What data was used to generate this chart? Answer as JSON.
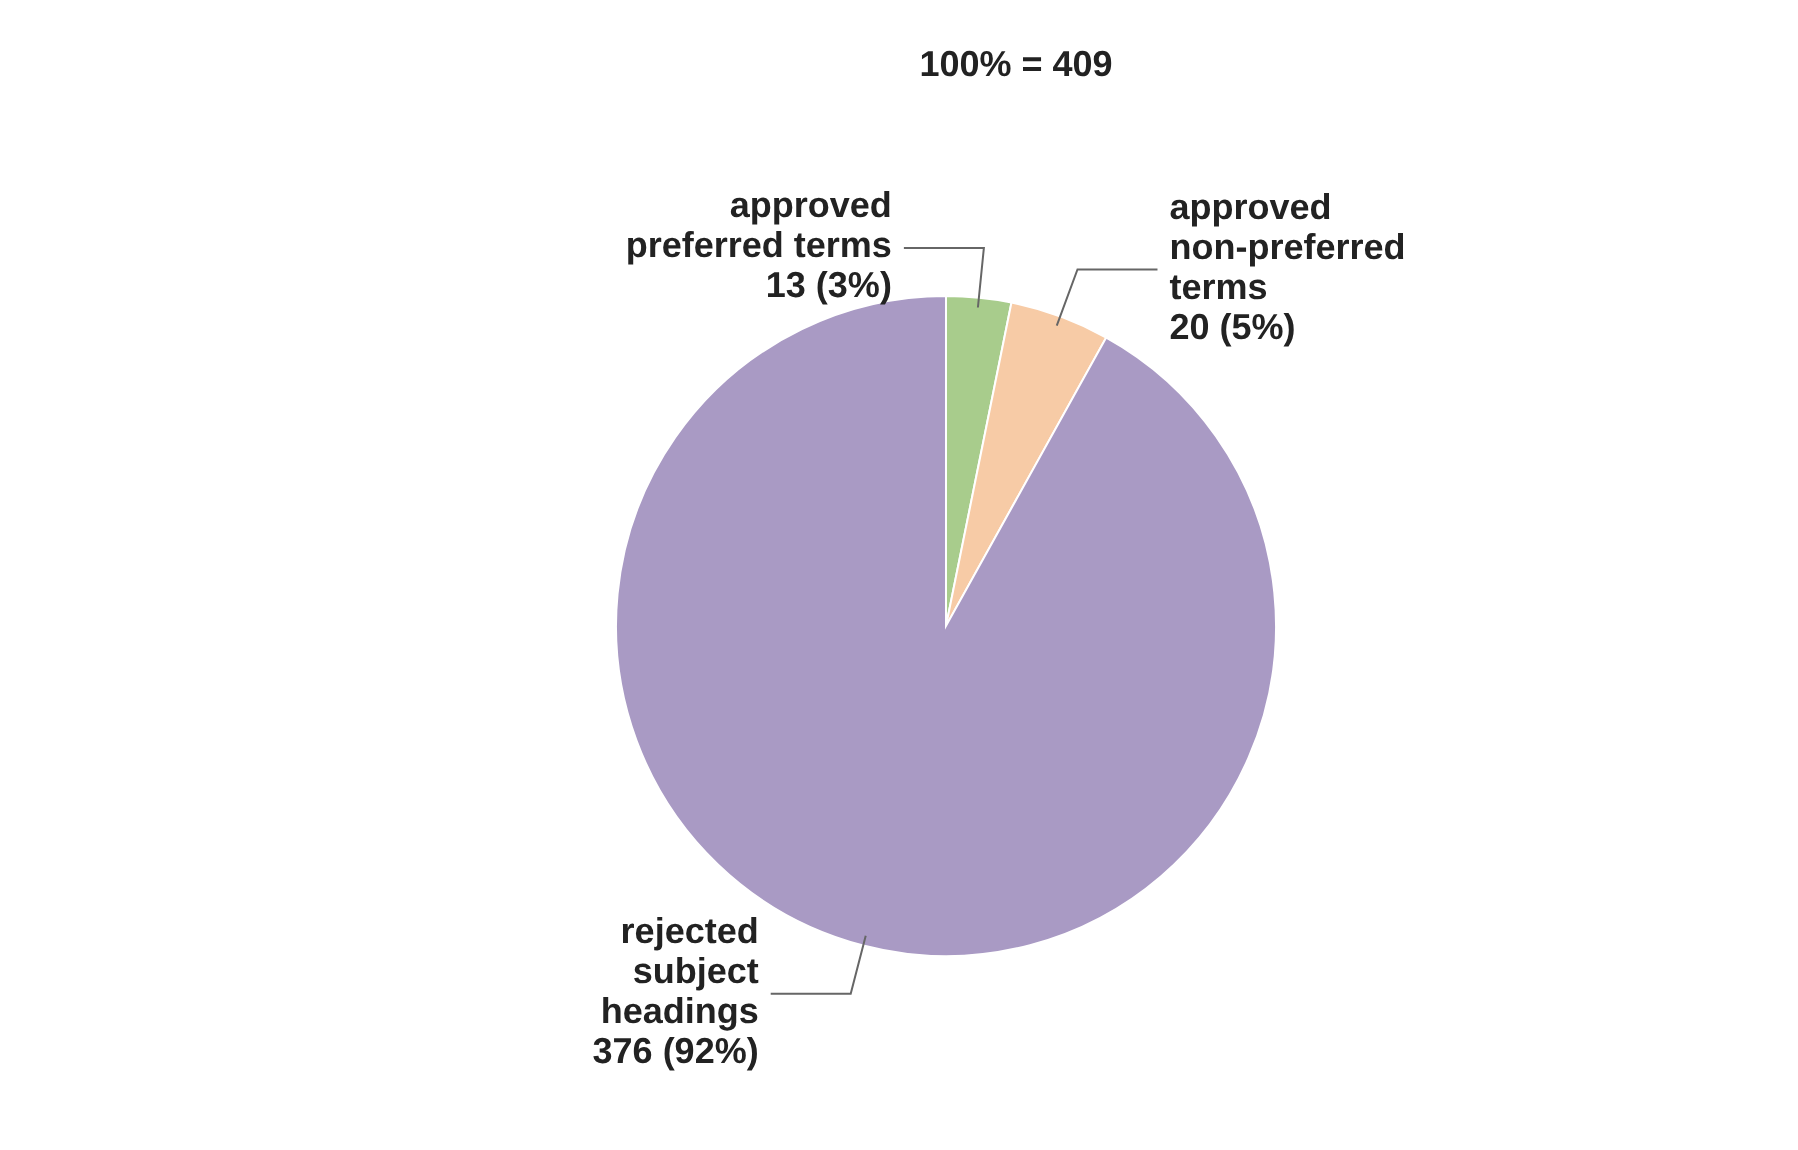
{
  "chart_data": {
    "type": "pie",
    "title": "100% = 409",
    "categories": [
      "approved preferred terms",
      "approved non-preferred terms",
      "rejected subject headings"
    ],
    "values": [
      13,
      20,
      376
    ],
    "value_labels": [
      "13 (3%)",
      "20 (5%)",
      "376 (92%)"
    ],
    "colors": [
      "#a8cc8c",
      "#f7cba6",
      "#a99ac4"
    ],
    "legend": false
  }
}
